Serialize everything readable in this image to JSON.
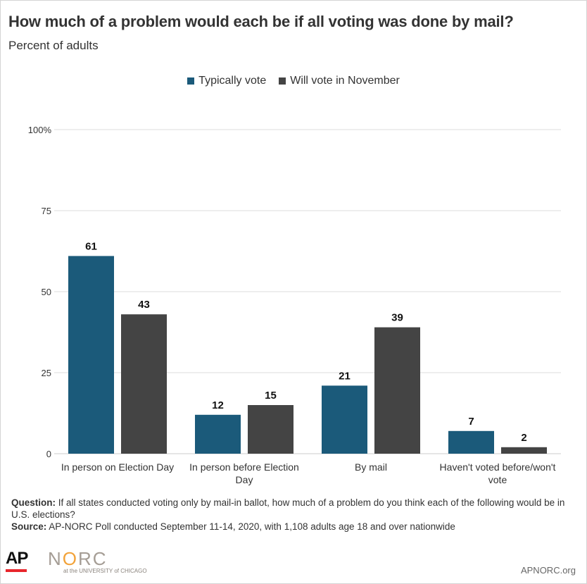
{
  "header": {
    "title": "How much of a problem would each be if all voting was done by mail?",
    "subtitle": "Percent of adults"
  },
  "legend": [
    {
      "label": "Typically vote",
      "color": "#1b5a7a"
    },
    {
      "label": "Will vote in November",
      "color": "#444444"
    }
  ],
  "chart_data": {
    "type": "bar",
    "categories": [
      [
        "In person on Election Day"
      ],
      [
        "In person before Election",
        "Day"
      ],
      [
        "By mail"
      ],
      [
        "Haven't voted before/won't",
        "vote"
      ]
    ],
    "series": [
      {
        "name": "Typically vote",
        "values": [
          61,
          12,
          21,
          7
        ],
        "color": "#1b5a7a"
      },
      {
        "name": "Will vote in November",
        "values": [
          43,
          15,
          39,
          2
        ],
        "color": "#444444"
      }
    ],
    "yticks": [
      "0",
      "25",
      "50",
      "75",
      "100%"
    ],
    "ylim": [
      0,
      100
    ],
    "grid": true,
    "legend_position": "top-center"
  },
  "footnote": {
    "question_label": "Question:",
    "question_text": " If all states conducted voting only by mail-in ballot, how much of a problem do you think each of the following would be in U.S. elections?",
    "source_label": "Source:",
    "source_text": " AP-NORC Poll conducted September 11-14, 2020, with 1,108 adults age 18 and over nationwide"
  },
  "branding": {
    "ap": "AP",
    "norc_n": "N",
    "norc_o": "O",
    "norc_rest": "RC",
    "norc_sub": "at the UNIVERSITY of CHICAGO",
    "site": "APNORC.org"
  }
}
